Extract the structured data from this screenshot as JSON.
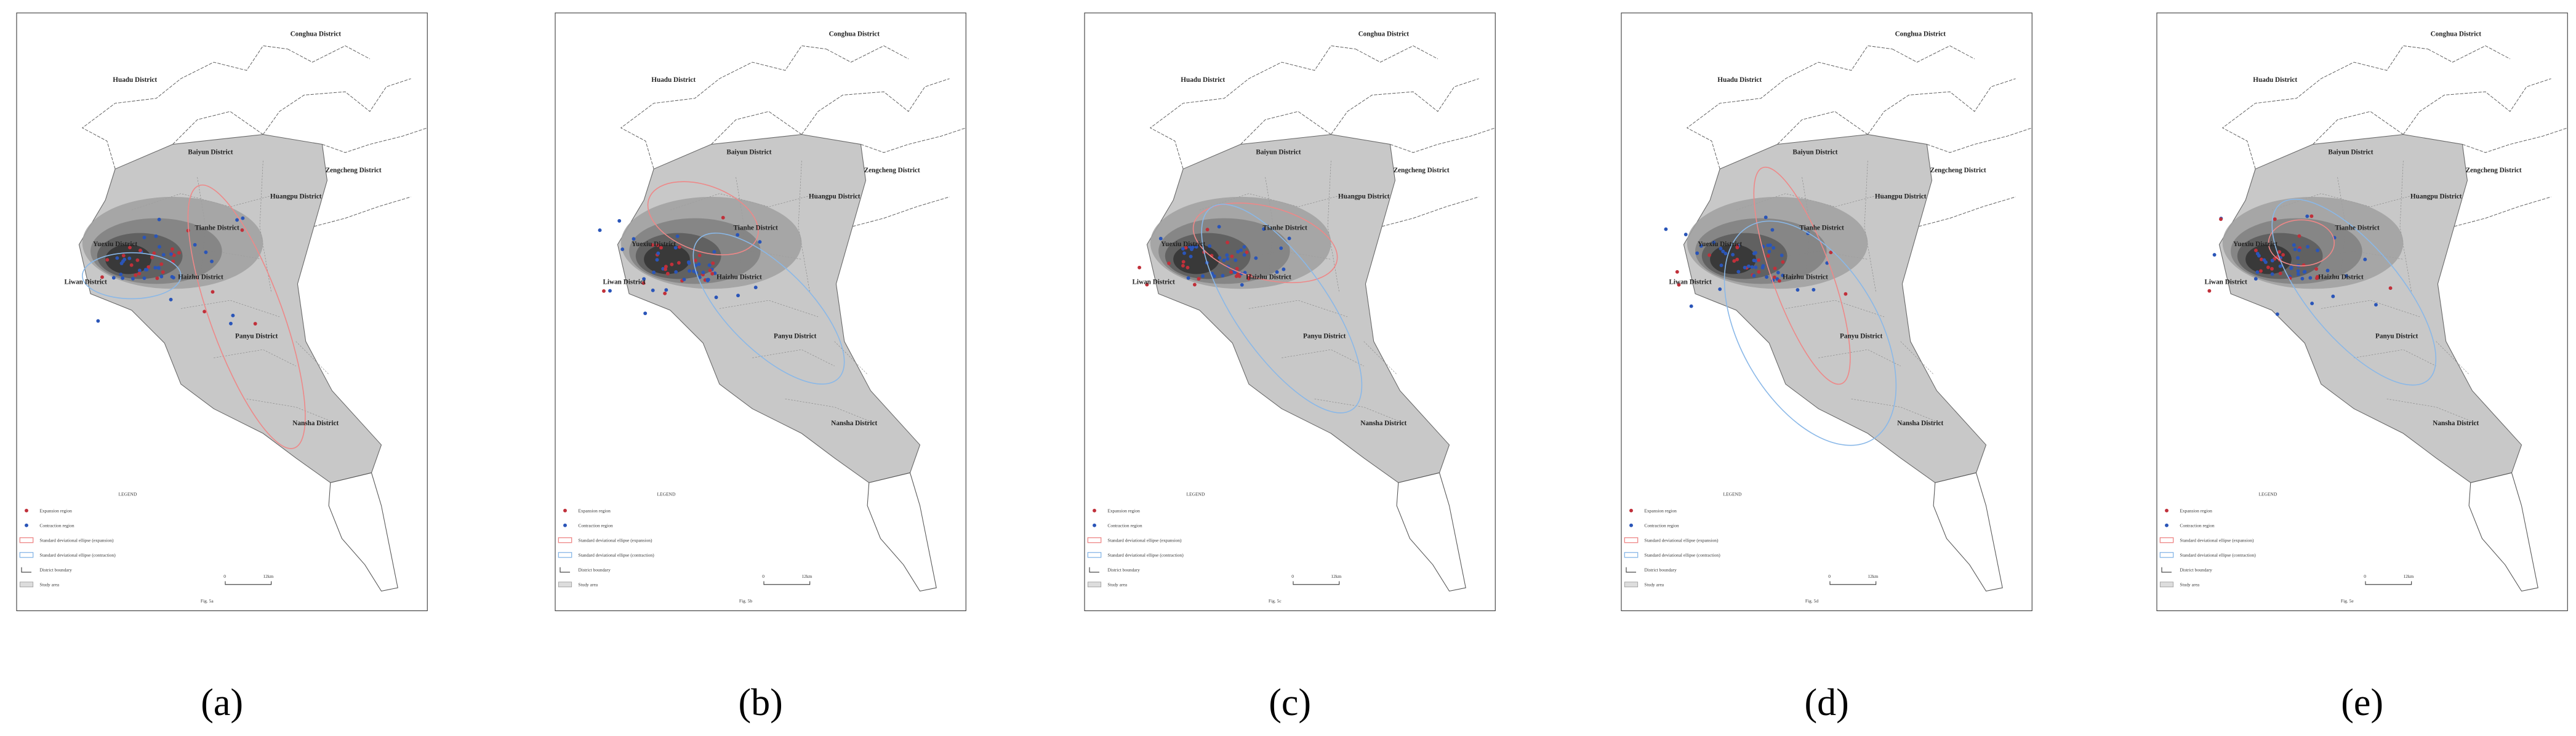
{
  "panels": [
    {
      "caption": "(a)",
      "fig_label": "Fig. 5a"
    },
    {
      "caption": "(b)",
      "fig_label": "Fig. 5b"
    },
    {
      "caption": "(c)",
      "fig_label": "Fig. 5c"
    },
    {
      "caption": "(d)",
      "fig_label": "Fig. 5d"
    },
    {
      "caption": "(e)",
      "fig_label": "Fig. 5e"
    }
  ],
  "districts": [
    "Conghua District",
    "Huadu District",
    "Baiyun District",
    "Zengcheng District",
    "Huangpu District",
    "Tianhe District",
    "Yuexiu District",
    "Liwan District",
    "Haizhu District",
    "Panyu District",
    "Nansha District"
  ],
  "legend": {
    "title": "LEGEND",
    "items": [
      "Expansion region",
      "Contraction region",
      "Standard deviational ellipse (expansion)",
      "Standard deviational ellipse (contraction)",
      "District boundary",
      "Study area"
    ]
  },
  "scale": {
    "zero": "0",
    "distance": "12km"
  }
}
